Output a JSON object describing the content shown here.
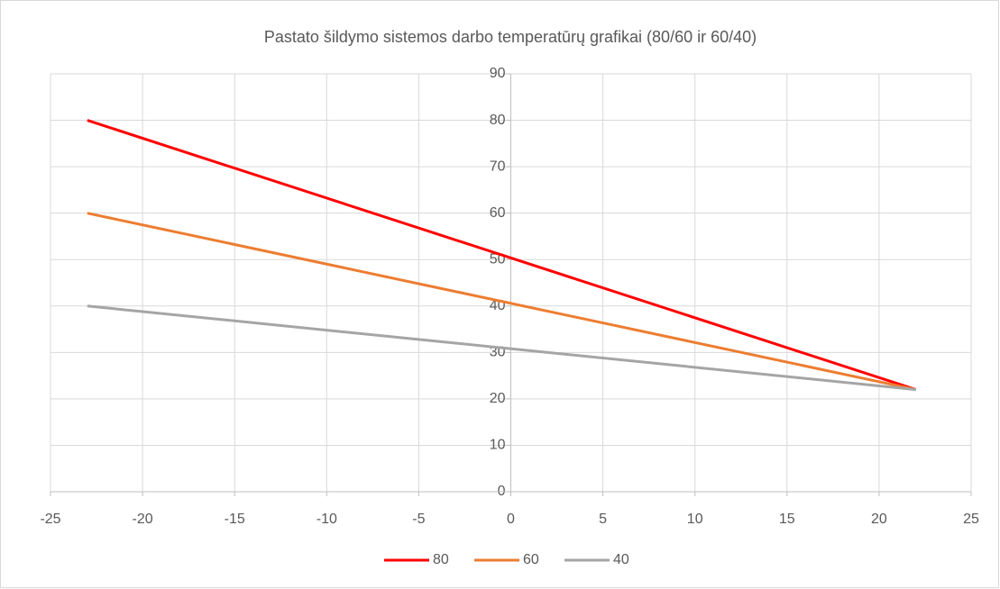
{
  "chart_data": {
    "type": "line",
    "title": "Pastato šildymo sistemos darbo temperatūrų grafikai (80/60 ir 60/40)",
    "x": [
      -23,
      22
    ],
    "series": [
      {
        "name": "80",
        "color": "#ff0000",
        "values": [
          80,
          22
        ]
      },
      {
        "name": "60",
        "color": "#ed7d31",
        "values": [
          60,
          22
        ]
      },
      {
        "name": "40",
        "color": "#a5a5a5",
        "values": [
          40,
          22
        ]
      }
    ],
    "xlim": [
      -25,
      25
    ],
    "xticks": [
      -25,
      -20,
      -15,
      -10,
      -5,
      0,
      5,
      10,
      15,
      20,
      25
    ],
    "ylim": [
      0,
      90
    ],
    "yticks": [
      0,
      10,
      20,
      30,
      40,
      50,
      60,
      70,
      80,
      90
    ],
    "grid": true,
    "legend": "bottom"
  }
}
